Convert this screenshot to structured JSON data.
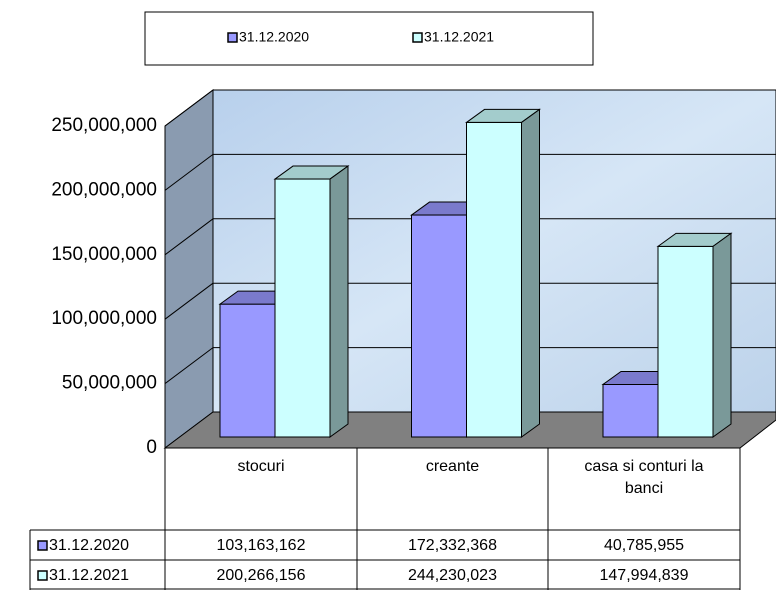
{
  "chart_data": {
    "type": "bar3d",
    "categories": [
      "stocuri",
      "creante",
      "casa si conturi la banci"
    ],
    "series": [
      {
        "name": "31.12.2020",
        "color": "#9999ff",
        "values": [
          103163162,
          172332368,
          40785955
        ],
        "value_labels": [
          "103,163,162",
          "172,332,368",
          "40,785,955"
        ]
      },
      {
        "name": "31.12.2021",
        "color": "#ccffff",
        "values": [
          200266156,
          244230023,
          147994839
        ],
        "value_labels": [
          "200,266,156",
          "244,230,023",
          "147,994,839"
        ]
      }
    ],
    "ylim": [
      0,
      250000000
    ],
    "yticks": [
      0,
      {
        "value": 50000000,
        "label": "50,000,000"
      },
      {
        "value": 100000000,
        "label": "100,000,000"
      },
      {
        "value": 150000000,
        "label": "150,000,000"
      },
      {
        "value": 200000000,
        "label": "200,000,000"
      },
      {
        "value": 250000000,
        "label": "250,000,000"
      }
    ],
    "grid": true,
    "legend": "top",
    "data_table": true
  }
}
